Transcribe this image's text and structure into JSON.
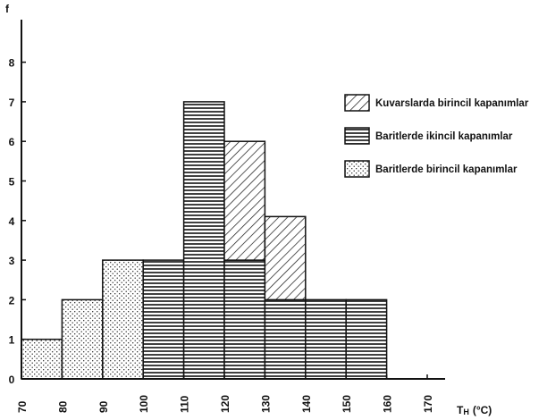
{
  "chart_data": {
    "type": "bar",
    "subtype": "stacked-histogram",
    "title": "",
    "xlabel_main": "T",
    "xlabel_sub": "H",
    "xlabel_unit": "(°C)",
    "ylabel": "f",
    "xlim": [
      70,
      175
    ],
    "ylim": [
      0,
      9
    ],
    "xticks": [
      70,
      80,
      90,
      100,
      110,
      120,
      130,
      140,
      150,
      160,
      170
    ],
    "yticks": [
      0,
      1,
      2,
      3,
      4,
      5,
      6,
      7,
      8
    ],
    "series": [
      {
        "name": "Baritlerde birincil kapanımlar",
        "pattern": "dots",
        "bins": [
          {
            "x0": 70,
            "x1": 80,
            "y0": 0,
            "y1": 1
          },
          {
            "x0": 80,
            "x1": 90,
            "y0": 0,
            "y1": 2
          },
          {
            "x0": 90,
            "x1": 100,
            "y0": 0,
            "y1": 3
          }
        ]
      },
      {
        "name": "Baritlerde ikincil kapanımlar",
        "pattern": "horizontal-lines",
        "bins": [
          {
            "x0": 100,
            "x1": 110,
            "y0": 0,
            "y1": 3
          },
          {
            "x0": 110,
            "x1": 120,
            "y0": 0,
            "y1": 7
          },
          {
            "x0": 120,
            "x1": 130,
            "y0": 0,
            "y1": 3
          },
          {
            "x0": 130,
            "x1": 140,
            "y0": 0,
            "y1": 2
          },
          {
            "x0": 140,
            "x1": 150,
            "y0": 0,
            "y1": 2
          },
          {
            "x0": 150,
            "x1": 160,
            "y0": 0,
            "y1": 2
          }
        ]
      },
      {
        "name": "Kuvarslarda birincil kapanımlar",
        "pattern": "diagonal-lines",
        "bins": [
          {
            "x0": 120,
            "x1": 130,
            "y0": 3,
            "y1": 6
          },
          {
            "x0": 130,
            "x1": 140,
            "y0": 2,
            "y1": 4.1
          }
        ]
      }
    ],
    "legend": {
      "placement": "right",
      "order": [
        2,
        1,
        0
      ]
    }
  }
}
